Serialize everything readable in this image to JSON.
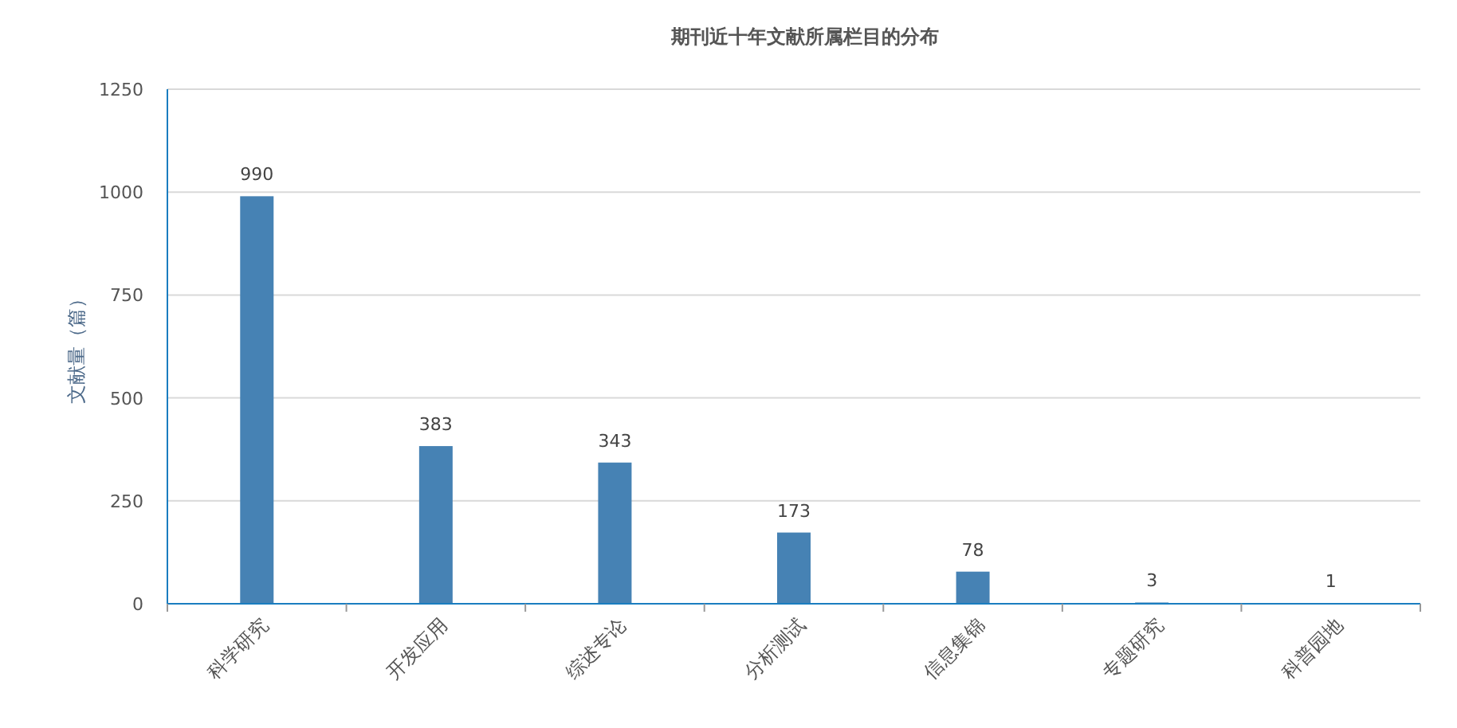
{
  "chart_data": {
    "type": "bar",
    "title": "期刊近十年文献所属栏目的分布",
    "ylabel": "文献量（篇）",
    "categories": [
      "科学研究",
      "开发应用",
      "综述专论",
      "分析测试",
      "信息集锦",
      "专题研究",
      "科普园地"
    ],
    "values": [
      990,
      383,
      343,
      173,
      78,
      3,
      1
    ],
    "color": "#4682b4",
    "ylim": [
      0,
      1250
    ],
    "yticks": [
      0,
      250,
      500,
      750,
      1000,
      1250
    ],
    "grid": "y",
    "data_labels": true
  }
}
